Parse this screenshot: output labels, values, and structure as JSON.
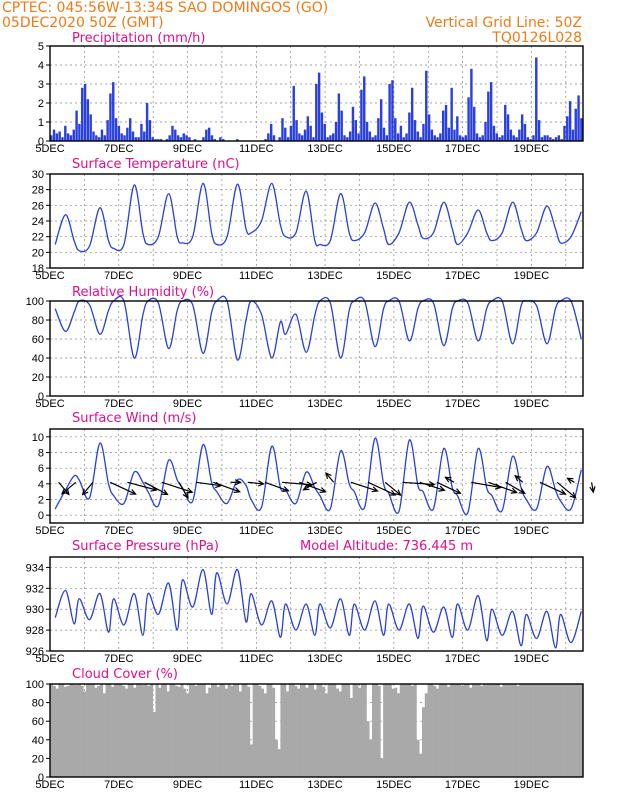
{
  "header": {
    "line1": "CPTEC:   045:56W-13:34S  SAO DOMINGOS (GO)",
    "line2_left": "05DEC2020 50Z (GMT)",
    "line2_right": "Vertical Grid Line: 50Z",
    "line3_right": "TQ0126L028"
  },
  "colors": {
    "header": "#f07a18",
    "panel_title": "#e0108a",
    "series": "#2a3fe0",
    "cloud": "#a9a9a9",
    "arrows": "#000000"
  },
  "chart_data": [
    {
      "type": "bar",
      "title": "Precipitation (mm/h)",
      "xticks": [
        "5DEC",
        "7DEC",
        "9DEC",
        "11DEC",
        "13DEC",
        "15DEC",
        "17DEC",
        "19DEC"
      ],
      "ylim": [
        0,
        5
      ],
      "yticks": [
        0,
        1,
        2,
        3,
        4,
        5
      ],
      "grid": true,
      "values": [
        0.3,
        0.6,
        0.4,
        0.5,
        0.2,
        0.8,
        0.4,
        0.3,
        0.6,
        1.6,
        0.9,
        2.8,
        3.0,
        2.2,
        1.4,
        0.5,
        0.3,
        0.2,
        0.6,
        0.3,
        1.1,
        2.5,
        3.1,
        1.2,
        0.8,
        0.4,
        0.3,
        0.7,
        1.2,
        0.5,
        0.2,
        0.2,
        0.9,
        0.5,
        2.0,
        1.1,
        0.2,
        0.1,
        0.1,
        0.1,
        0.0,
        0.1,
        0.3,
        0.8,
        0.6,
        0.3,
        0.2,
        0.4,
        0.3,
        0.2,
        0.0,
        0.1,
        0.0,
        0.0,
        0.2,
        0.6,
        0.7,
        0.3,
        0.1,
        0.0,
        0.2,
        0.1,
        0.0,
        0.0,
        0.0,
        0.0,
        0.1,
        0.0,
        0.0,
        0.0,
        0.0,
        0.0,
        0.0,
        0.0,
        0.0,
        0.0,
        0.1,
        0.4,
        0.9,
        0.3,
        0.0,
        0.2,
        1.2,
        0.7,
        0.2,
        0.8,
        2.9,
        1.1,
        0.4,
        0.3,
        0.6,
        1.3,
        0.8,
        0.2,
        3.0,
        3.6,
        1.5,
        0.9,
        0.2,
        0.3,
        0.4,
        1.0,
        2.5,
        1.6,
        0.3,
        0.2,
        0.5,
        1.8,
        1.1,
        0.4,
        2.7,
        3.4,
        1.0,
        0.5,
        0.2,
        0.3,
        1.2,
        2.2,
        0.7,
        0.3,
        3.0,
        3.2,
        1.2,
        0.4,
        0.8,
        0.2,
        0.4,
        1.5,
        2.8,
        1.1,
        0.5,
        0.2,
        0.9,
        3.7,
        1.4,
        0.6,
        0.3,
        0.2,
        0.4,
        1.6,
        1.9,
        0.7,
        2.8,
        0.6,
        1.3,
        0.3,
        0.2,
        0.3,
        2.3,
        3.8,
        1.8,
        0.4,
        0.2,
        0.3,
        1.0,
        2.6,
        3.1,
        0.8,
        0.4,
        0.2,
        0.3,
        1.9,
        1.4,
        0.6,
        0.3,
        0.2,
        0.6,
        1.4,
        0.9,
        0.2,
        0.1,
        0.3,
        4.4,
        1.1,
        0.2,
        0.3,
        0.3,
        0.2,
        0.1,
        0.2,
        0.3,
        0.1,
        0.8,
        1.3,
        2.1,
        0.6,
        1.7,
        2.4,
        1.2
      ]
    },
    {
      "type": "line",
      "title": "Surface Temperature (nC)",
      "xticks": [
        "5DEC",
        "7DEC",
        "9DEC",
        "11DEC",
        "13DEC",
        "15DEC",
        "17DEC",
        "19DEC"
      ],
      "ylim": [
        18,
        30
      ],
      "yticks": [
        18,
        20,
        22,
        24,
        26,
        28,
        30
      ],
      "grid": true,
      "days": [
        [
          19.6,
          21.0,
          24.8,
          21.5
        ],
        [
          20.2,
          20.8,
          25.7,
          21.5
        ],
        [
          20.5,
          21.0,
          28.6,
          22.5
        ],
        [
          21.0,
          22.0,
          27.5,
          22.0
        ],
        [
          21.2,
          22.0,
          28.8,
          22.5
        ],
        [
          21.0,
          22.0,
          28.7,
          23.0
        ],
        [
          22.5,
          24.0,
          28.8,
          23.5
        ],
        [
          22.0,
          22.5,
          27.8,
          21.5
        ],
        [
          21.0,
          21.5,
          27.5,
          22.5
        ],
        [
          21.5,
          22.5,
          26.3,
          23.0
        ],
        [
          21.0,
          22.5,
          26.4,
          23.5
        ],
        [
          21.8,
          22.5,
          26.4,
          23.0
        ],
        [
          21.0,
          22.5,
          25.4,
          22.5
        ],
        [
          21.5,
          22.5,
          26.4,
          23.0
        ],
        [
          21.5,
          22.5,
          25.9,
          23.0
        ],
        [
          21.2,
          22.0,
          25.2,
          22.8
        ]
      ]
    },
    {
      "type": "line",
      "title": "Relative Humidity (%)",
      "xticks": [
        "5DEC",
        "7DEC",
        "9DEC",
        "11DEC",
        "13DEC",
        "15DEC",
        "17DEC",
        "19DEC"
      ],
      "ylim": [
        0,
        100
      ],
      "yticks": [
        0,
        20,
        40,
        60,
        80,
        100
      ],
      "grid": true,
      "days": [
        [
          98,
          92,
          68,
          88
        ],
        [
          100,
          96,
          65,
          90
        ],
        [
          100,
          100,
          40,
          85
        ],
        [
          100,
          98,
          50,
          90
        ],
        [
          100,
          96,
          45,
          88
        ],
        [
          100,
          100,
          38,
          80
        ],
        [
          100,
          86,
          40,
          78
        ],
        [
          65,
          86,
          46,
          85
        ],
        [
          100,
          98,
          40,
          90
        ],
        [
          100,
          100,
          52,
          92
        ],
        [
          100,
          100,
          58,
          92
        ],
        [
          100,
          98,
          53,
          92
        ],
        [
          100,
          98,
          58,
          92
        ],
        [
          100,
          100,
          55,
          95
        ],
        [
          100,
          95,
          55,
          92
        ],
        [
          100,
          100,
          60,
          95
        ]
      ]
    },
    {
      "type": "line",
      "title": "Surface Wind (m/s)",
      "xticks": [
        "5DEC",
        "7DEC",
        "9DEC",
        "11DEC",
        "13DEC",
        "15DEC",
        "17DEC",
        "19DEC"
      ],
      "ylim": [
        -1,
        11
      ],
      "yticks": [
        0,
        2,
        4,
        6,
        8,
        10
      ],
      "grid": true,
      "days": [
        [
          2.2,
          0.8,
          3.2,
          5.0
        ],
        [
          4.5,
          2.2,
          9.2,
          4.0
        ],
        [
          2.5,
          1.5,
          5.5,
          4.2
        ],
        [
          3.0,
          1.2,
          7.0,
          4.5
        ],
        [
          3.5,
          1.8,
          9.0,
          4.2
        ],
        [
          3.0,
          1.5,
          4.5,
          3.8
        ],
        [
          2.0,
          1.0,
          8.8,
          3.5
        ],
        [
          3.2,
          1.5,
          5.5,
          3.5
        ],
        [
          2.5,
          0.8,
          8.2,
          4.0
        ],
        [
          3.0,
          1.0,
          9.8,
          4.0
        ],
        [
          2.8,
          0.5,
          9.6,
          3.8
        ],
        [
          3.0,
          0.8,
          8.5,
          3.5
        ],
        [
          2.5,
          0.3,
          8.5,
          3.5
        ],
        [
          2.5,
          0.6,
          7.5,
          3.5
        ],
        [
          2.0,
          0.8,
          6.2,
          3.2
        ],
        [
          1.8,
          0.8,
          5.8,
          2.0
        ]
      ],
      "wind_arrows": [
        [
          140,
          16
        ],
        [
          230,
          18
        ],
        [
          220,
          16
        ],
        [
          115,
          28
        ],
        [
          105,
          30
        ],
        [
          118,
          26
        ],
        [
          108,
          32
        ],
        [
          150,
          18
        ],
        [
          98,
          25
        ],
        [
          110,
          28
        ],
        [
          90,
          10
        ],
        [
          96,
          16
        ],
        [
          110,
          25
        ],
        [
          95,
          30
        ],
        [
          110,
          28
        ],
        [
          240,
          15
        ],
        [
          320,
          12
        ],
        [
          108,
          28
        ],
        [
          115,
          30
        ],
        [
          130,
          20
        ],
        [
          94,
          32
        ],
        [
          108,
          26
        ],
        [
          115,
          26
        ],
        [
          300,
          10
        ],
        [
          100,
          30
        ],
        [
          110,
          30
        ],
        [
          120,
          22
        ],
        [
          310,
          10
        ],
        [
          115,
          28
        ],
        [
          130,
          24
        ],
        [
          300,
          8
        ],
        [
          170,
          10
        ]
      ]
    },
    {
      "type": "line",
      "title": "Surface Pressure (hPa)",
      "annotation": "Model Altitude: 736.445 m",
      "xticks": [
        "5DEC",
        "7DEC",
        "9DEC",
        "11DEC",
        "13DEC",
        "15DEC",
        "17DEC",
        "19DEC"
      ],
      "ylim": [
        926,
        935
      ],
      "yticks": [
        926,
        928,
        930,
        932,
        934
      ],
      "grid": true,
      "days": [
        [
          931.5,
          929.2,
          931.8,
          928.6
        ],
        [
          931.0,
          929.0,
          931.5,
          927.8
        ],
        [
          931.0,
          928.5,
          931.5,
          927.5
        ],
        [
          931.5,
          929.5,
          932.5,
          928.0
        ],
        [
          932.8,
          930.2,
          933.8,
          929.5
        ],
        [
          933.5,
          930.5,
          933.8,
          928.8
        ],
        [
          931.5,
          928.5,
          930.8,
          927.3
        ],
        [
          930.5,
          928.0,
          930.5,
          927.5
        ],
        [
          930.5,
          928.2,
          931.0,
          927.5
        ],
        [
          930.5,
          928.0,
          930.8,
          927.5
        ],
        [
          930.5,
          928.0,
          930.5,
          927.2
        ],
        [
          930.3,
          927.8,
          930.2,
          927.3
        ],
        [
          930.5,
          928.0,
          931.3,
          927.0
        ],
        [
          930.0,
          927.5,
          929.8,
          926.5
        ],
        [
          929.5,
          927.2,
          929.8,
          926.3
        ],
        [
          929.5,
          926.8,
          929.8,
          926.2
        ]
      ]
    },
    {
      "type": "area",
      "title": "Cloud Cover (%)",
      "xticks": [
        "5DEC",
        "7DEC",
        "9DEC",
        "11DEC",
        "13DEC",
        "15DEC",
        "17DEC",
        "19DEC"
      ],
      "ylim": [
        0,
        100
      ],
      "yticks": [
        0,
        20,
        40,
        60,
        80,
        100
      ],
      "grid": true,
      "values": [
        100,
        98,
        95,
        100,
        100,
        97,
        98,
        100,
        100,
        99,
        100,
        98,
        92,
        100,
        100,
        100,
        96,
        98,
        100,
        90,
        100,
        100,
        97,
        100,
        100,
        100,
        98,
        95,
        100,
        100,
        96,
        100,
        100,
        99,
        100,
        98,
        100,
        70,
        100,
        96,
        100,
        100,
        92,
        100,
        100,
        98,
        97,
        100,
        95,
        90,
        100,
        100,
        98,
        100,
        100,
        100,
        90,
        96,
        100,
        100,
        97,
        100,
        100,
        95,
        100,
        98,
        100,
        100,
        92,
        100,
        100,
        97,
        35,
        100,
        100,
        98,
        95,
        90,
        100,
        100,
        96,
        40,
        30,
        100,
        100,
        92,
        100,
        100,
        98,
        95,
        100,
        100,
        96,
        100,
        100,
        94,
        100,
        100,
        97,
        90,
        100,
        100,
        100,
        95,
        92,
        100,
        100,
        100,
        85,
        100,
        100,
        96,
        100,
        100,
        60,
        40,
        100,
        100,
        98,
        20,
        100,
        100,
        100,
        95,
        96,
        90,
        100,
        100,
        100,
        100,
        98,
        100,
        40,
        25,
        75,
        90,
        100,
        100,
        98,
        95,
        100,
        100,
        100,
        97,
        100,
        100,
        100,
        100,
        98,
        100,
        100,
        96,
        100,
        100,
        100,
        98,
        100,
        100,
        100,
        100,
        100,
        100,
        97,
        100,
        100,
        100,
        100,
        100,
        98,
        100,
        100,
        100,
        100,
        100,
        100,
        100,
        100,
        100,
        100,
        100,
        100,
        100,
        100,
        100,
        100,
        100,
        100,
        100,
        100,
        100,
        100,
        100
      ]
    }
  ]
}
